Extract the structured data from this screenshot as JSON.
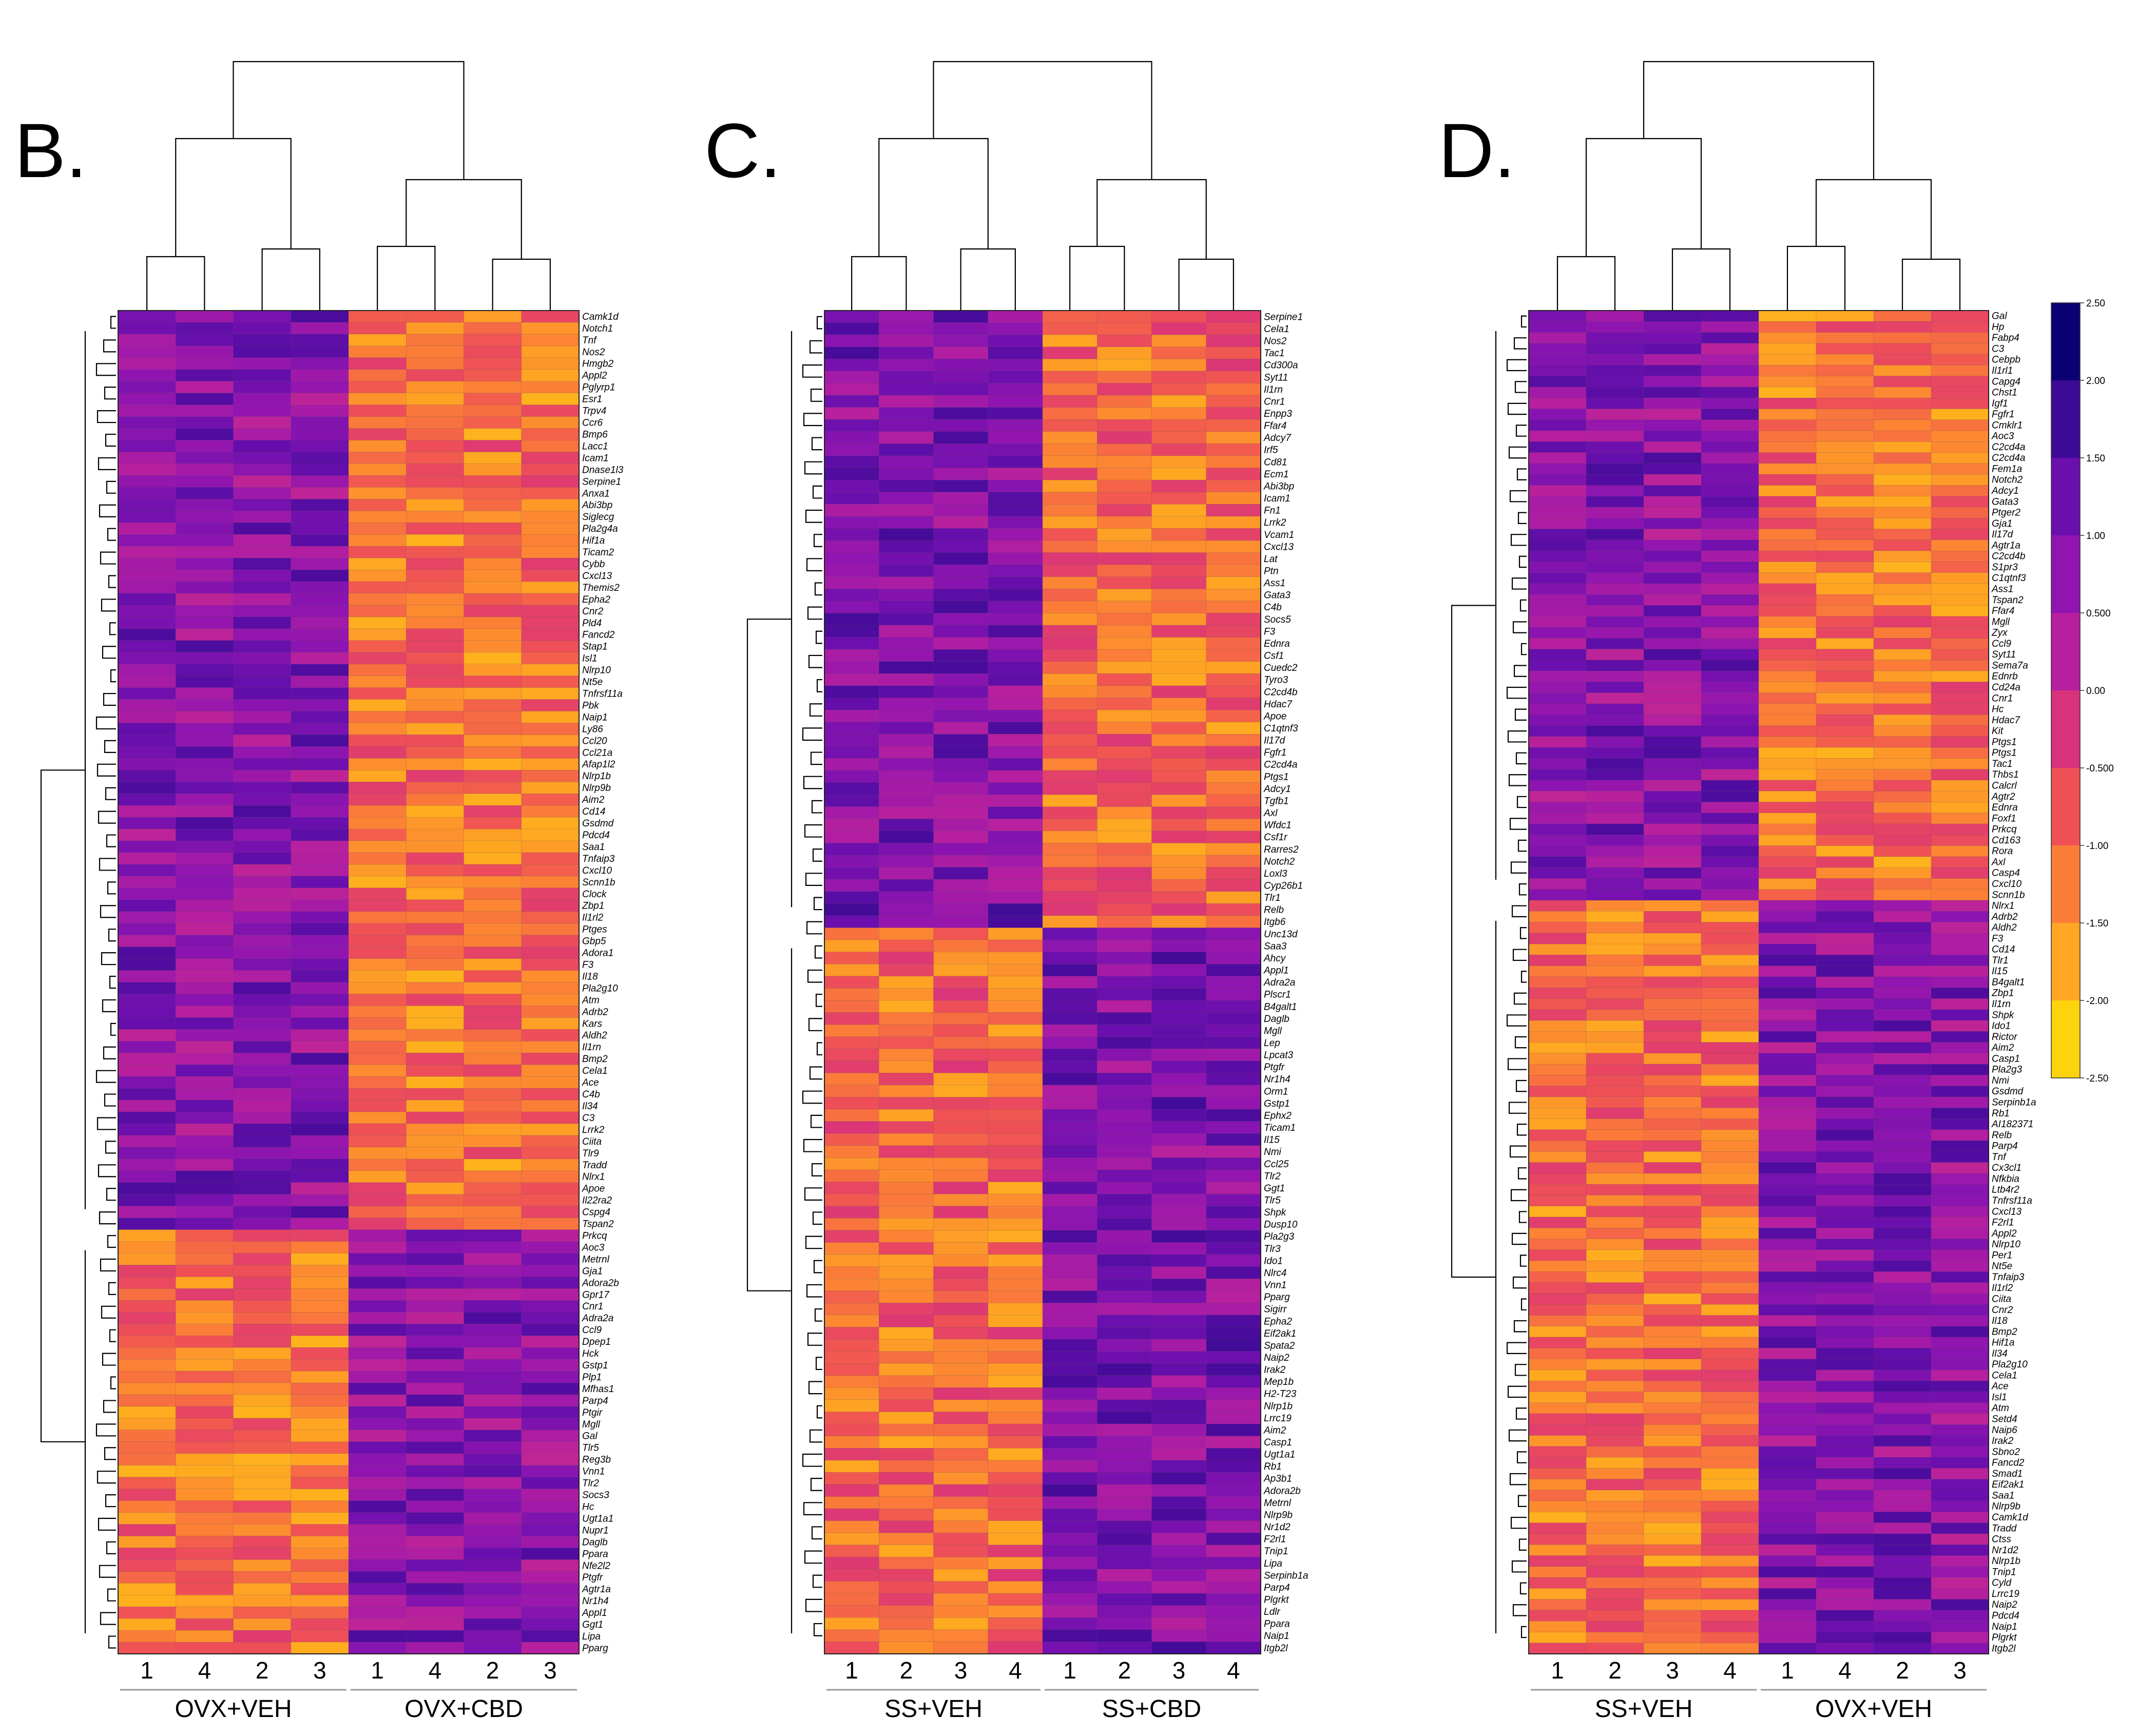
{
  "chart_data": [
    {
      "type": "heatmap",
      "panel_label": "B.",
      "column_labels": [
        "1",
        "4",
        "2",
        "3",
        "1",
        "4",
        "2",
        "3"
      ],
      "groups": [
        {
          "name": "OVX+VEH",
          "columns": 4
        },
        {
          "name": "OVX+CBD",
          "columns": 4
        }
      ],
      "split_after_row": 77,
      "rows": [
        "Camk1d",
        "Notch1",
        "Tnf",
        "Nos2",
        "Hmgb2",
        "Appl2",
        "Pglyrp1",
        "Esr1",
        "Trpv4",
        "Ccr6",
        "Bmp6",
        "Lacc1",
        "Icam1",
        "Dnase1l3",
        "Serpine1",
        "Anxa1",
        "Abi3bp",
        "Siglecg",
        "Pla2g4a",
        "Hif1a",
        "Ticam2",
        "Cybb",
        "Cxcl13",
        "Themis2",
        "Epha2",
        "Cnr2",
        "Pld4",
        "Fancd2",
        "Stap1",
        "Isl1",
        "Nlrp10",
        "Nt5e",
        "Tnfrsf11a",
        "Pbk",
        "Naip1",
        "Ly86",
        "Ccl20",
        "Ccl21a",
        "Afap1l2",
        "Nlrp1b",
        "Nlrp9b",
        "Aim2",
        "Cd14",
        "Gsdmd",
        "Pdcd4",
        "Saa1",
        "Tnfaip3",
        "Cxcl10",
        "Scnn1b",
        "Clock",
        "Zbp1",
        "Il1rl2",
        "Ptges",
        "Gbp5",
        "Adora1",
        "F3",
        "Il18",
        "Pla2g10",
        "Atm",
        "Adrb2",
        "Kars",
        "Aldh2",
        "Il1rn",
        "Bmp2",
        "Cela1",
        "Ace",
        "C4b",
        "Il34",
        "C3",
        "Lrrk2",
        "Ciita",
        "Tlr9",
        "Tradd",
        "Nlrx1",
        "Apoe",
        "Il22ra2",
        "Cspg4",
        "Tspan2",
        "Prkcq",
        "Aoc3",
        "Metrnl",
        "Gja1",
        "Adora2b",
        "Gpr17",
        "Cnr1",
        "Adra2a",
        "Ccl9",
        "Dpep1",
        "Hck",
        "Gstp1",
        "Plp1",
        "Mfhas1",
        "Parp4",
        "Ptgir",
        "Mgll",
        "Gal",
        "Tlr5",
        "Reg3b",
        "Vnn1",
        "Tlr2",
        "Socs3",
        "Hc",
        "Ugt1a1",
        "Nupr1",
        "Daglb",
        "Ppara",
        "Nfe2l2",
        "Ptgfr",
        "Agtr1a",
        "Nr1h4",
        "Appl1",
        "Ggt1",
        "Lipa",
        "Pparg"
      ]
    },
    {
      "type": "heatmap",
      "panel_label": "C.",
      "column_labels": [
        "1",
        "2",
        "3",
        "4",
        "1",
        "2",
        "3",
        "4"
      ],
      "groups": [
        {
          "name": "SS+VEH",
          "columns": 4
        },
        {
          "name": "SS+CBD",
          "columns": 4
        }
      ],
      "split_after_row": 50,
      "rows": [
        "Serpine1",
        "Cela1",
        "Nos2",
        "Tac1",
        "Cd300a",
        "Syt11",
        "Il1rn",
        "Cnr1",
        "Enpp3",
        "Ffar4",
        "Adcy7",
        "Irf5",
        "Cd81",
        "Ecm1",
        "Abi3bp",
        "Icam1",
        "Fn1",
        "Lrrk2",
        "Vcam1",
        "Cxcl13",
        "Lat",
        "Ptn",
        "Ass1",
        "Gata3",
        "C4b",
        "Socs5",
        "F3",
        "Ednra",
        "Csf1",
        "Cuedc2",
        "Tyro3",
        "C2cd4b",
        "Hdac7",
        "Apoe",
        "C1qtnf3",
        "Il17d",
        "Fgfr1",
        "C2cd4a",
        "Ptgs1",
        "Adcy1",
        "Tgfb1",
        "Axl",
        "Wfdc1",
        "Csf1r",
        "Rarres2",
        "Notch2",
        "Loxl3",
        "Cyp26b1",
        "Tlr1",
        "Relb",
        "Itgb6",
        "Unc13d",
        "Saa3",
        "Ahcy",
        "Appl1",
        "Adra2a",
        "Plscr1",
        "B4galt1",
        "Daglb",
        "Mgll",
        "Lep",
        "Lpcat3",
        "Ptgfr",
        "Nr1h4",
        "Orm1",
        "Gstp1",
        "Ephx2",
        "Ticam1",
        "Il15",
        "Nmi",
        "Ccl25",
        "Tlr2",
        "Ggt1",
        "Tlr5",
        "Shpk",
        "Dusp10",
        "Pla2g3",
        "Tlr3",
        "Ido1",
        "Nlrc4",
        "Vnn1",
        "Pparg",
        "Sigirr",
        "Epha2",
        "Eif2ak1",
        "Spata2",
        "Naip2",
        "Irak2",
        "Mep1b",
        "H2-T23",
        "Nlrp1b",
        "Lrrc19",
        "Aim2",
        "Casp1",
        "Ugt1a1",
        "Rb1",
        "Ap3b1",
        "Adora2b",
        "Metrnl",
        "Nlrp9b",
        "Nr1d2",
        "F2rl1",
        "Tnip1",
        "Lipa",
        "Serpinb1a",
        "Parp4",
        "Plgrkt",
        "Ldlr",
        "Ppara",
        "Naip1",
        "Itgb2l"
      ]
    },
    {
      "type": "heatmap",
      "panel_label": "D.",
      "column_labels": [
        "1",
        "2",
        "3",
        "4",
        "1",
        "4",
        "2",
        "3"
      ],
      "groups": [
        {
          "name": "SS+VEH",
          "columns": 4
        },
        {
          "name": "OVX+VEH",
          "columns": 4
        }
      ],
      "split_after_row": 53,
      "rows": [
        "Gal",
        "Hp",
        "Fabp4",
        "C3",
        "Cebpb",
        "Il1rl1",
        "Capg4",
        "Chst1",
        "Igf1",
        "Fgfr1",
        "Cmklr1",
        "Aoc3",
        "C2cd4a",
        "C2cd4a",
        "Fem1a",
        "Notch2",
        "Adcy1",
        "Gata3",
        "Ptger2",
        "Gja1",
        "Il17d",
        "Agtr1a",
        "C2cd4b",
        "S1pr3",
        "C1qtnf3",
        "Ass1",
        "Tspan2",
        "Ffar4",
        "Mgll",
        "Zyx",
        "Ccl9",
        "Syt11",
        "Sema7a",
        "Ednrb",
        "Cd24a",
        "Cnr1",
        "Hc",
        "Hdac7",
        "Kit",
        "Ptgs1",
        "Ptgs1",
        "Tac1",
        "Thbs1",
        "Calcrl",
        "Agtr2",
        "Ednra",
        "Foxf1",
        "Prkcq",
        "Cd163",
        "Rora",
        "Axl",
        "Casp4",
        "Cxcl10",
        "Scnn1b",
        "Nlrx1",
        "Adrb2",
        "Aldh2",
        "F3",
        "Cd14",
        "Tlr1",
        "Il15",
        "B4galt1",
        "Zbp1",
        "Il1rn",
        "Shpk",
        "Ido1",
        "Rictor",
        "Aim2",
        "Casp1",
        "Pla2g3",
        "Nmi",
        "Gsdmd",
        "Serpinb1a",
        "Rb1",
        "AI182371",
        "Relb",
        "Parp4",
        "Tnf",
        "Cx3cl1",
        "Nfkbia",
        "Ltb4r2",
        "Tnfrsf11a",
        "Cxcl13",
        "F2rl1",
        "Appl2",
        "Nlrp10",
        "Per1",
        "Nt5e",
        "Tnfaip3",
        "Il1rl2",
        "Ciita",
        "Cnr2",
        "Il18",
        "Bmp2",
        "Hif1a",
        "Il34",
        "Pla2g10",
        "Cela1",
        "Ace",
        "Isl1",
        "Atm",
        "Setd4",
        "Naip6",
        "Irak2",
        "Sbno2",
        "Fancd2",
        "Smad1",
        "Eif2ak1",
        "Saa1",
        "Nlrp9b",
        "Camk1d",
        "Tradd",
        "Ctss",
        "Nr1d2",
        "Nlrp1b",
        "Tnip1",
        "Cyld",
        "Lrrc19",
        "Naip2",
        "Pdcd4",
        "Naip1",
        "Plgrkt",
        "Itgb2l"
      ]
    }
  ],
  "colorbar": {
    "range": [
      -2.5,
      2.5
    ],
    "ticks": [
      "2.50",
      "2.00",
      "1.50",
      "1.00",
      "0.500",
      "0.00",
      "-0.500",
      "-1.00",
      "-1.50",
      "-2.00",
      "-2.50"
    ],
    "colors": [
      "#0b0072",
      "#3d0a95",
      "#6a0fae",
      "#9015b0",
      "#b51fa0",
      "#d8327c",
      "#ef5056",
      "#fb7c38",
      "#ffa622",
      "#fcd30d",
      "#e5f90d"
    ]
  }
}
